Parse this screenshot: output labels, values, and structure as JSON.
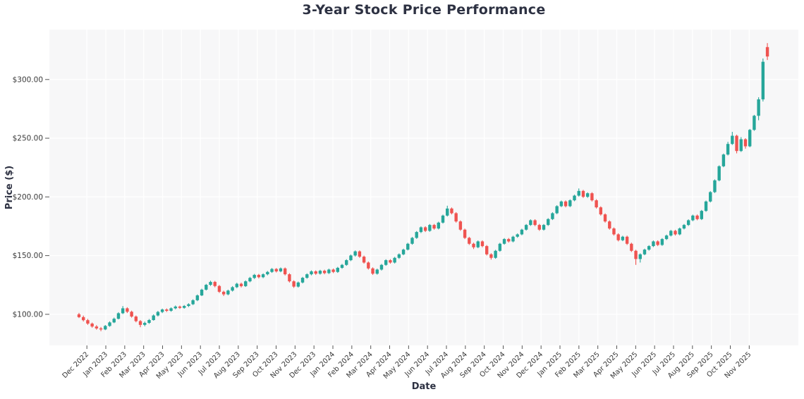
{
  "chart_data": {
    "type": "candlestick",
    "title": "3-Year Stock Price Performance",
    "xlabel": "Date",
    "ylabel": "Price ($)",
    "grid": true,
    "legend": "none",
    "ylim": [
      73.5,
      342.5
    ],
    "y_ticks": [
      {
        "value": 100,
        "label": "$100.00"
      },
      {
        "value": 150,
        "label": "$150.00"
      },
      {
        "value": 200,
        "label": "$200.00"
      },
      {
        "value": 250,
        "label": "$250.00"
      },
      {
        "value": 300,
        "label": "$300.00"
      }
    ],
    "x_tick_labels": [
      "Dec 2022",
      "Jan 2023",
      "Feb 2023",
      "Mar 2023",
      "Apr 2023",
      "May 2023",
      "Jun 2023",
      "Jul 2023",
      "Aug 2023",
      "Sep 2023",
      "Oct 2023",
      "Nov 2023",
      "Dec 2023",
      "Jan 2024",
      "Feb 2024",
      "Mar 2024",
      "Apr 2024",
      "May 2024",
      "Jun 2024",
      "Jul 2024",
      "Aug 2024",
      "Sep 2024",
      "Oct 2024",
      "Nov 2024",
      "Dec 2024",
      "Jan 2025",
      "Feb 2025",
      "Mar 2025",
      "Apr 2025",
      "May 2025",
      "Jun 2025",
      "Jul 2025",
      "Aug 2025",
      "Sep 2025",
      "Oct 2025",
      "Nov 2025"
    ],
    "colors": {
      "up": "#26a69a",
      "down": "#ef5350",
      "plot_bg": "#f7f7f8",
      "grid": "#ffffff",
      "tick_text": "#3a3a3a",
      "tick_mark": "#555555",
      "title_text": "#2d3142"
    },
    "candles_format": [
      "open",
      "high",
      "low",
      "close"
    ],
    "candles_interval": "weekly",
    "candles": [
      [
        100.0,
        101.2,
        96.8,
        97.6
      ],
      [
        97.6,
        98.9,
        93.9,
        95.0
      ],
      [
        95.0,
        96.1,
        91.0,
        92.1
      ],
      [
        92.1,
        93.0,
        88.6,
        89.6
      ],
      [
        89.6,
        90.8,
        86.9,
        88.0
      ],
      [
        88.0,
        89.2,
        85.6,
        87.1
      ],
      [
        87.1,
        90.9,
        86.5,
        90.1
      ],
      [
        90.1,
        94.0,
        89.4,
        93.1
      ],
      [
        93.1,
        97.2,
        92.5,
        96.2
      ],
      [
        96.2,
        101.8,
        95.7,
        100.9
      ],
      [
        100.9,
        107.0,
        100.2,
        105.1
      ],
      [
        105.1,
        106.0,
        101.1,
        102.2
      ],
      [
        102.2,
        103.1,
        97.2,
        98.1
      ],
      [
        98.1,
        99.0,
        93.2,
        94.2
      ],
      [
        94.2,
        95.1,
        89.0,
        91.0
      ],
      [
        91.0,
        93.8,
        89.8,
        92.7
      ],
      [
        92.7,
        96.0,
        91.9,
        95.1
      ],
      [
        95.1,
        99.9,
        94.6,
        99.0
      ],
      [
        99.0,
        102.9,
        98.2,
        102.0
      ],
      [
        102.0,
        104.9,
        101.0,
        104.1
      ],
      [
        104.1,
        105.0,
        102.0,
        103.0
      ],
      [
        103.0,
        105.9,
        102.2,
        105.1
      ],
      [
        105.1,
        107.5,
        104.3,
        106.6
      ],
      [
        106.6,
        107.4,
        104.6,
        105.5
      ],
      [
        105.5,
        107.9,
        104.8,
        107.1
      ],
      [
        107.1,
        109.4,
        106.2,
        108.6
      ],
      [
        108.6,
        112.8,
        107.9,
        112.0
      ],
      [
        112.0,
        116.9,
        111.2,
        116.1
      ],
      [
        116.1,
        121.8,
        115.5,
        121.0
      ],
      [
        121.0,
        125.9,
        120.3,
        125.1
      ],
      [
        125.1,
        128.6,
        124.2,
        127.6
      ],
      [
        127.6,
        128.4,
        123.0,
        124.1
      ],
      [
        124.1,
        125.0,
        118.2,
        119.2
      ],
      [
        119.2,
        120.1,
        115.6,
        117.0
      ],
      [
        117.0,
        121.0,
        116.2,
        120.2
      ],
      [
        120.2,
        124.0,
        119.4,
        123.1
      ],
      [
        123.1,
        126.9,
        122.3,
        126.0
      ],
      [
        126.0,
        127.0,
        122.9,
        124.0
      ],
      [
        124.0,
        128.9,
        123.3,
        128.1
      ],
      [
        128.1,
        131.9,
        127.3,
        131.0
      ],
      [
        131.0,
        134.4,
        130.1,
        133.6
      ],
      [
        133.6,
        134.4,
        130.6,
        131.6
      ],
      [
        131.6,
        134.9,
        130.8,
        134.1
      ],
      [
        134.1,
        136.9,
        133.2,
        136.1
      ],
      [
        136.1,
        139.4,
        135.3,
        138.6
      ],
      [
        138.6,
        139.4,
        135.6,
        136.6
      ],
      [
        136.6,
        139.9,
        135.8,
        139.1
      ],
      [
        139.1,
        139.9,
        133.1,
        134.1
      ],
      [
        134.1,
        135.0,
        127.1,
        128.1
      ],
      [
        128.1,
        129.0,
        122.5,
        123.6
      ],
      [
        123.6,
        127.9,
        122.8,
        127.1
      ],
      [
        127.1,
        131.9,
        126.3,
        131.1
      ],
      [
        131.1,
        134.9,
        130.3,
        134.1
      ],
      [
        134.1,
        137.4,
        133.2,
        136.6
      ],
      [
        136.6,
        137.4,
        133.6,
        134.6
      ],
      [
        134.6,
        137.9,
        133.8,
        137.1
      ],
      [
        137.1,
        138.0,
        134.1,
        135.1
      ],
      [
        135.1,
        138.9,
        134.3,
        138.1
      ],
      [
        138.1,
        139.0,
        135.1,
        136.1
      ],
      [
        136.1,
        140.4,
        135.3,
        139.6
      ],
      [
        139.6,
        142.9,
        138.8,
        142.1
      ],
      [
        142.1,
        146.9,
        141.3,
        146.1
      ],
      [
        146.1,
        150.9,
        145.3,
        150.1
      ],
      [
        150.1,
        154.4,
        149.2,
        153.6
      ],
      [
        153.6,
        154.4,
        148.1,
        149.1
      ],
      [
        149.1,
        150.0,
        143.2,
        144.1
      ],
      [
        144.1,
        145.0,
        138.1,
        139.1
      ],
      [
        139.1,
        140.0,
        133.6,
        134.6
      ],
      [
        134.6,
        138.9,
        133.8,
        138.1
      ],
      [
        138.1,
        142.9,
        137.3,
        142.1
      ],
      [
        142.1,
        146.9,
        141.3,
        146.1
      ],
      [
        146.1,
        147.0,
        143.1,
        144.1
      ],
      [
        144.1,
        148.9,
        143.3,
        148.1
      ],
      [
        148.1,
        151.9,
        147.2,
        151.1
      ],
      [
        151.1,
        155.9,
        150.3,
        155.1
      ],
      [
        155.1,
        160.9,
        154.4,
        160.1
      ],
      [
        160.1,
        165.9,
        159.3,
        165.1
      ],
      [
        165.1,
        170.9,
        164.3,
        170.1
      ],
      [
        170.1,
        174.9,
        169.2,
        174.1
      ],
      [
        174.1,
        175.0,
        170.1,
        171.1
      ],
      [
        171.1,
        176.9,
        170.3,
        176.1
      ],
      [
        176.1,
        177.0,
        172.1,
        173.1
      ],
      [
        173.1,
        178.9,
        172.3,
        178.1
      ],
      [
        178.1,
        184.9,
        177.3,
        184.1
      ],
      [
        184.1,
        192.5,
        183.3,
        190.1
      ],
      [
        190.1,
        191.0,
        185.1,
        186.1
      ],
      [
        186.1,
        187.0,
        178.1,
        179.1
      ],
      [
        179.1,
        180.0,
        171.1,
        172.1
      ],
      [
        172.1,
        173.0,
        164.1,
        165.1
      ],
      [
        165.1,
        166.0,
        159.1,
        160.1
      ],
      [
        160.1,
        161.0,
        155.6,
        157.1
      ],
      [
        157.1,
        162.9,
        156.3,
        162.1
      ],
      [
        162.1,
        163.0,
        157.1,
        158.1
      ],
      [
        158.1,
        159.0,
        150.1,
        151.1
      ],
      [
        151.1,
        152.0,
        146.6,
        148.1
      ],
      [
        148.1,
        154.9,
        147.3,
        154.1
      ],
      [
        154.1,
        160.9,
        153.3,
        160.1
      ],
      [
        160.1,
        164.9,
        159.3,
        164.1
      ],
      [
        164.1,
        165.0,
        161.1,
        162.1
      ],
      [
        162.1,
        166.9,
        161.3,
        166.1
      ],
      [
        166.1,
        168.9,
        165.2,
        168.1
      ],
      [
        168.1,
        172.9,
        167.3,
        172.1
      ],
      [
        172.1,
        176.9,
        171.3,
        176.1
      ],
      [
        176.1,
        180.9,
        175.3,
        180.1
      ],
      [
        180.1,
        181.0,
        175.1,
        176.1
      ],
      [
        176.1,
        177.0,
        171.1,
        172.1
      ],
      [
        172.1,
        176.9,
        171.3,
        176.1
      ],
      [
        176.1,
        181.9,
        175.3,
        181.1
      ],
      [
        181.1,
        186.9,
        180.3,
        186.1
      ],
      [
        186.1,
        192.9,
        185.3,
        192.1
      ],
      [
        192.1,
        196.9,
        191.3,
        196.1
      ],
      [
        196.1,
        197.0,
        191.1,
        192.1
      ],
      [
        192.1,
        197.9,
        191.3,
        197.1
      ],
      [
        197.1,
        201.9,
        196.3,
        201.1
      ],
      [
        201.1,
        207.2,
        200.3,
        205.1
      ],
      [
        205.1,
        206.0,
        199.1,
        200.1
      ],
      [
        200.1,
        203.9,
        199.2,
        203.1
      ],
      [
        203.1,
        204.0,
        196.1,
        197.1
      ],
      [
        197.1,
        198.0,
        190.1,
        191.1
      ],
      [
        191.1,
        192.0,
        184.1,
        185.1
      ],
      [
        185.1,
        186.0,
        178.1,
        179.1
      ],
      [
        179.1,
        180.0,
        172.1,
        173.1
      ],
      [
        173.1,
        174.0,
        167.1,
        168.1
      ],
      [
        168.1,
        169.0,
        162.1,
        163.1
      ],
      [
        163.1,
        166.9,
        162.3,
        166.1
      ],
      [
        166.1,
        167.0,
        159.1,
        160.1
      ],
      [
        160.1,
        161.0,
        153.1,
        154.1
      ],
      [
        154.1,
        155.0,
        142.1,
        147.1
      ],
      [
        147.1,
        151.9,
        144.1,
        151.1
      ],
      [
        151.1,
        155.9,
        150.3,
        155.1
      ],
      [
        155.1,
        158.9,
        154.2,
        158.1
      ],
      [
        158.1,
        162.9,
        157.3,
        162.1
      ],
      [
        162.1,
        163.0,
        158.1,
        159.1
      ],
      [
        159.1,
        164.9,
        158.3,
        164.1
      ],
      [
        164.1,
        167.9,
        163.3,
        167.1
      ],
      [
        167.1,
        171.9,
        166.3,
        171.1
      ],
      [
        171.1,
        172.0,
        167.1,
        168.1
      ],
      [
        168.1,
        173.9,
        167.3,
        173.1
      ],
      [
        173.1,
        176.9,
        172.3,
        176.1
      ],
      [
        176.1,
        180.9,
        175.3,
        180.1
      ],
      [
        180.1,
        184.9,
        179.3,
        184.1
      ],
      [
        184.1,
        185.0,
        180.1,
        181.1
      ],
      [
        181.1,
        188.9,
        180.3,
        188.1
      ],
      [
        188.1,
        196.9,
        187.3,
        196.1
      ],
      [
        196.1,
        204.9,
        195.3,
        204.1
      ],
      [
        204.1,
        214.9,
        203.3,
        214.1
      ],
      [
        214.1,
        226.9,
        213.3,
        226.1
      ],
      [
        226.1,
        236.9,
        225.3,
        236.1
      ],
      [
        236.1,
        246.9,
        235.3,
        245.1
      ],
      [
        245.1,
        255.4,
        244.3,
        252.1
      ],
      [
        252.1,
        253.0,
        237.1,
        239.1
      ],
      [
        239.1,
        250.9,
        238.3,
        249.1
      ],
      [
        249.1,
        250.0,
        241.1,
        243.1
      ],
      [
        243.1,
        257.9,
        242.3,
        257.1
      ],
      [
        257.1,
        269.9,
        256.3,
        269.1
      ],
      [
        269.1,
        284.9,
        265.3,
        283.1
      ],
      [
        283.1,
        317.9,
        281.3,
        315.1
      ],
      [
        327.6,
        331.0,
        316.6,
        319.6
      ]
    ]
  }
}
